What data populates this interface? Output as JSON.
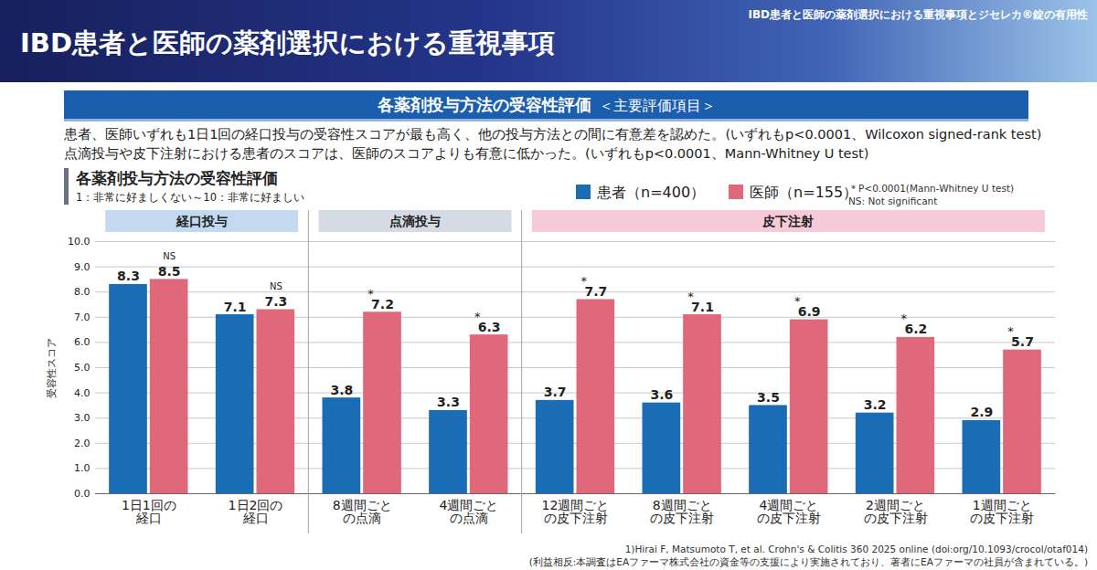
{
  "header": {
    "title": "IBD患者と医師の薬剤選択における重視事項",
    "breadcrumb": "IBD患者と医師の薬剤選択における重視事項とジセレカ®錠の有用性"
  },
  "section": {
    "title": "各薬剤投与方法の受容性評価",
    "tag": "＜主要評価項目＞"
  },
  "summary": [
    "患者、医師いずれも1日1回の経口投与の受容性スコアが最も高く、他の投与方法との間に有意差を認めた。(いずれもp<0.0001、Wilcoxon signed-rank test)",
    "点滴投与や皮下注射における患者のスコアは、医師のスコアよりも有意に低かった。(いずれもp<0.0001、Mann-Whitney U test)"
  ],
  "chart_data": {
    "type": "bar",
    "title": "各薬剤投与方法の受容性評価",
    "subtitle": "1：非常に好ましくない～10：非常に好ましい",
    "y_label": "受容性スコア",
    "categories": [
      "1日1回の\n経口",
      "1日2回の\n経口",
      "8週間ごと\nの点滴",
      "4週間ごと\nの点滴",
      "12週間ごと\nの皮下注射",
      "8週間ごと\nの皮下注射",
      "4週間ごと\nの皮下注射",
      "2週間ごと\nの皮下注射",
      "1週間ごと\nの皮下注射"
    ],
    "groups": [
      {
        "label": "経口投与",
        "count": 2,
        "color": "#c3d9f0"
      },
      {
        "label": "点滴投与",
        "count": 2,
        "color": "#d5dbe4"
      },
      {
        "label": "皮下注射",
        "count": 5,
        "color": "#f6cad8"
      }
    ],
    "series": [
      {
        "name": "患者（n=400）",
        "color": "#1a6db5",
        "values": [
          8.3,
          7.1,
          3.8,
          3.3,
          3.7,
          3.6,
          3.5,
          3.2,
          2.9
        ]
      },
      {
        "name": "医師（n=155）",
        "color": "#e0687b",
        "values": [
          8.5,
          7.3,
          7.2,
          6.3,
          7.7,
          7.1,
          6.9,
          6.2,
          5.7
        ],
        "significance": [
          "NS",
          "NS",
          "*",
          "*",
          "*",
          "*",
          "*",
          "*",
          "*"
        ]
      }
    ],
    "notes": [
      "＊P<0.0001(Mann-Whitney U test)",
      "NS: Not significant"
    ],
    "ylim": [
      0,
      10
    ],
    "yticks": [
      {
        "value": 0,
        "label": "0.0"
      },
      {
        "value": 1,
        "label": "1.0"
      },
      {
        "value": 2,
        "label": "2.0"
      },
      {
        "value": 3,
        "label": "3.0"
      },
      {
        "value": 4,
        "label": "4.0"
      },
      {
        "value": 5,
        "label": "5.0"
      },
      {
        "value": 6,
        "label": "6.0"
      },
      {
        "value": 7,
        "label": "7.0"
      },
      {
        "value": 8,
        "label": "8.0"
      },
      {
        "value": 9,
        "label": "9.0"
      },
      {
        "value": 10,
        "label": "10.0"
      }
    ],
    "grid": true,
    "data_labels": true,
    "legend": "top"
  },
  "footer": [
    "1)Hirai F, Matsumoto T, et al. Crohn's & Colitis 360 2025 online (doi:org/10.1093/crocol/otaf014)",
    "(利益相反:本調査はEAファーマ株式会社の資金等の支援により実施されており、著者にEAファーマの社員が含まれている。)"
  ]
}
